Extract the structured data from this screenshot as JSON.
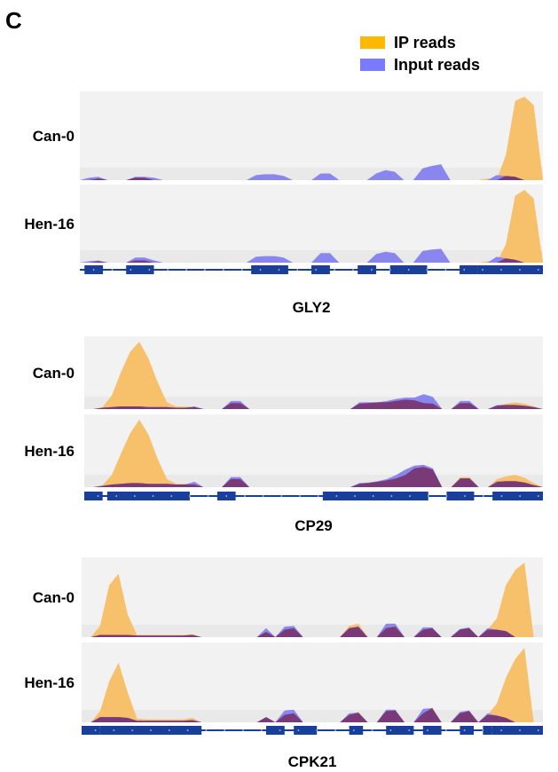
{
  "panel_label": "C",
  "legend": [
    {
      "label": "IP reads",
      "color": "#ffb800"
    },
    {
      "label": "Input reads",
      "color": "#7b7bff"
    }
  ],
  "colors": {
    "ip_fill": "#f7c06a",
    "input_fill": "#8a86ef",
    "overlap_fill": "#7a3a78",
    "track_bg": "#f2f2f2",
    "gene_model": "#1a3f9a"
  },
  "chart_data": [
    {
      "type": "area",
      "gene": "GLY2",
      "tracks": [
        "Can-0",
        "Hen-16"
      ],
      "x": [
        0.0,
        0.02,
        0.04,
        0.06,
        0.08,
        0.1,
        0.12,
        0.14,
        0.16,
        0.18,
        0.2,
        0.22,
        0.24,
        0.26,
        0.28,
        0.3,
        0.32,
        0.34,
        0.36,
        0.38,
        0.4,
        0.42,
        0.44,
        0.46,
        0.48,
        0.5,
        0.52,
        0.54,
        0.56,
        0.58,
        0.6,
        0.62,
        0.64,
        0.66,
        0.68,
        0.7,
        0.72,
        0.74,
        0.76,
        0.78,
        0.8,
        0.82,
        0.84,
        0.86,
        0.88,
        0.9,
        0.92,
        0.94,
        0.96,
        0.98,
        1.0
      ],
      "series": [
        {
          "name": "IP reads",
          "track": "Can-0",
          "values": [
            0,
            0,
            2,
            0,
            0,
            0,
            3,
            3,
            0,
            0,
            0,
            0,
            0,
            0,
            0,
            0,
            0,
            0,
            0,
            0,
            0,
            0,
            0,
            0,
            0,
            0,
            0,
            0,
            0,
            0,
            0,
            0,
            0,
            0,
            0,
            0,
            0,
            0,
            0,
            0,
            0,
            0,
            0,
            0,
            2,
            0,
            30,
            95,
            100,
            90,
            0
          ]
        },
        {
          "name": "Input reads",
          "track": "Can-0",
          "values": [
            0,
            3,
            4,
            0,
            0,
            0,
            4,
            4,
            3,
            0,
            0,
            0,
            0,
            0,
            0,
            0,
            0,
            0,
            0,
            6,
            7,
            7,
            5,
            0,
            0,
            0,
            8,
            8,
            0,
            0,
            0,
            0,
            8,
            12,
            10,
            0,
            0,
            14,
            17,
            19,
            0,
            0,
            0,
            0,
            0,
            6,
            5,
            4,
            0,
            0,
            0
          ]
        },
        {
          "name": "IP reads",
          "track": "Hen-16",
          "values": [
            0,
            0,
            2,
            0,
            0,
            0,
            3,
            3,
            0,
            0,
            0,
            0,
            0,
            0,
            0,
            0,
            0,
            0,
            0,
            0,
            0,
            0,
            0,
            0,
            0,
            0,
            0,
            0,
            0,
            0,
            0,
            0,
            0,
            0,
            0,
            0,
            0,
            0,
            0,
            0,
            0,
            0,
            0,
            0,
            2,
            0,
            25,
            92,
            100,
            88,
            0
          ]
        },
        {
          "name": "Input reads",
          "track": "Hen-16",
          "values": [
            0,
            2,
            3,
            0,
            0,
            0,
            7,
            7,
            3,
            0,
            0,
            0,
            0,
            0,
            0,
            0,
            0,
            0,
            0,
            8,
            9,
            9,
            7,
            0,
            0,
            0,
            13,
            13,
            0,
            0,
            0,
            0,
            12,
            15,
            13,
            0,
            0,
            16,
            18,
            19,
            0,
            0,
            0,
            0,
            0,
            8,
            6,
            4,
            0,
            0,
            0
          ]
        }
      ],
      "gene_model": {
        "blocks": [
          [
            0.01,
            0.05
          ],
          [
            0.1,
            0.16
          ],
          [
            0.37,
            0.45
          ],
          [
            0.5,
            0.54
          ],
          [
            0.6,
            0.64
          ],
          [
            0.67,
            0.75
          ],
          [
            0.82,
            0.86
          ],
          [
            0.86,
            1.0
          ]
        ],
        "intron_range": [
          0.0,
          1.0
        ]
      }
    },
    {
      "type": "area",
      "gene": "CP29",
      "tracks": [
        "Can-0",
        "Hen-16"
      ],
      "x": [
        0.0,
        0.02,
        0.04,
        0.06,
        0.08,
        0.1,
        0.12,
        0.14,
        0.16,
        0.18,
        0.2,
        0.22,
        0.24,
        0.26,
        0.28,
        0.3,
        0.32,
        0.34,
        0.36,
        0.38,
        0.4,
        0.42,
        0.44,
        0.46,
        0.48,
        0.5,
        0.52,
        0.54,
        0.56,
        0.58,
        0.6,
        0.62,
        0.64,
        0.66,
        0.68,
        0.7,
        0.72,
        0.74,
        0.76,
        0.78,
        0.8,
        0.82,
        0.84,
        0.86,
        0.88,
        0.9,
        0.92,
        0.94,
        0.96,
        0.98,
        1.0
      ],
      "series": [
        {
          "name": "IP reads",
          "track": "Can-0",
          "values": [
            0,
            0,
            3,
            20,
            55,
            85,
            100,
            75,
            40,
            10,
            4,
            4,
            3,
            0,
            0,
            0,
            9,
            9,
            0,
            0,
            0,
            0,
            0,
            0,
            0,
            0,
            0,
            0,
            0,
            0,
            8,
            9,
            10,
            10,
            12,
            14,
            13,
            9,
            8,
            0,
            0,
            9,
            9,
            0,
            0,
            5,
            8,
            10,
            8,
            4,
            0
          ]
        },
        {
          "name": "Input reads",
          "track": "Can-0",
          "values": [
            0,
            0,
            2,
            3,
            4,
            4,
            4,
            3,
            3,
            3,
            2,
            2,
            4,
            0,
            0,
            0,
            12,
            12,
            0,
            0,
            0,
            0,
            0,
            0,
            0,
            0,
            0,
            0,
            0,
            0,
            10,
            10,
            10,
            12,
            15,
            17,
            17,
            22,
            18,
            0,
            0,
            12,
            12,
            0,
            0,
            6,
            6,
            6,
            5,
            3,
            0
          ]
        },
        {
          "name": "IP reads",
          "track": "Hen-16",
          "values": [
            0,
            0,
            3,
            18,
            50,
            80,
            100,
            78,
            42,
            12,
            5,
            5,
            4,
            0,
            0,
            0,
            12,
            12,
            0,
            0,
            0,
            0,
            0,
            0,
            0,
            0,
            0,
            0,
            0,
            0,
            5,
            6,
            8,
            10,
            13,
            18,
            28,
            30,
            26,
            0,
            0,
            15,
            15,
            0,
            0,
            12,
            16,
            18,
            14,
            6,
            0
          ]
        },
        {
          "name": "Input reads",
          "track": "Hen-16",
          "values": [
            0,
            0,
            2,
            4,
            5,
            6,
            6,
            5,
            5,
            5,
            4,
            4,
            8,
            0,
            0,
            0,
            15,
            15,
            0,
            0,
            0,
            0,
            0,
            0,
            0,
            0,
            0,
            0,
            0,
            0,
            6,
            7,
            9,
            12,
            18,
            26,
            32,
            33,
            28,
            0,
            0,
            13,
            13,
            0,
            0,
            8,
            9,
            9,
            7,
            3,
            0
          ]
        }
      ],
      "gene_model": {
        "blocks": [
          [
            0.0,
            0.04
          ],
          [
            0.05,
            0.23
          ],
          [
            0.29,
            0.33
          ],
          [
            0.52,
            0.75
          ],
          [
            0.79,
            0.82
          ],
          [
            0.82,
            0.85
          ],
          [
            0.89,
            1.0
          ]
        ],
        "intron_range": [
          0.0,
          1.0
        ]
      }
    },
    {
      "type": "area",
      "gene": "CPK21",
      "tracks": [
        "Can-0",
        "Hen-16"
      ],
      "x": [
        0.0,
        0.02,
        0.04,
        0.06,
        0.08,
        0.1,
        0.12,
        0.14,
        0.16,
        0.18,
        0.2,
        0.22,
        0.24,
        0.26,
        0.28,
        0.3,
        0.32,
        0.34,
        0.36,
        0.38,
        0.4,
        0.42,
        0.44,
        0.46,
        0.48,
        0.5,
        0.52,
        0.54,
        0.56,
        0.58,
        0.6,
        0.62,
        0.64,
        0.66,
        0.68,
        0.7,
        0.72,
        0.74,
        0.76,
        0.78,
        0.8,
        0.82,
        0.84,
        0.86,
        0.88,
        0.9,
        0.92,
        0.94,
        0.96,
        0.98,
        1.0
      ],
      "series": [
        {
          "name": "IP reads",
          "track": "Can-0",
          "values": [
            0,
            0,
            15,
            70,
            85,
            30,
            3,
            3,
            3,
            3,
            3,
            3,
            4,
            0,
            0,
            0,
            0,
            0,
            0,
            0,
            7,
            0,
            10,
            12,
            0,
            0,
            0,
            0,
            0,
            15,
            18,
            0,
            0,
            12,
            14,
            0,
            0,
            10,
            12,
            0,
            0,
            10,
            12,
            0,
            10,
            25,
            70,
            90,
            100,
            0,
            0
          ]
        },
        {
          "name": "Input reads",
          "track": "Can-0",
          "values": [
            0,
            0,
            3,
            3,
            3,
            3,
            2,
            2,
            2,
            2,
            2,
            2,
            3,
            0,
            0,
            0,
            0,
            0,
            0,
            0,
            12,
            0,
            14,
            15,
            0,
            0,
            0,
            0,
            0,
            12,
            14,
            0,
            0,
            18,
            18,
            0,
            0,
            13,
            13,
            0,
            0,
            11,
            13,
            0,
            12,
            10,
            8,
            0,
            0,
            0,
            0
          ]
        },
        {
          "name": "IP reads",
          "track": "Hen-16",
          "values": [
            0,
            0,
            15,
            55,
            80,
            40,
            5,
            4,
            4,
            4,
            4,
            4,
            6,
            0,
            0,
            0,
            0,
            0,
            0,
            0,
            7,
            0,
            10,
            12,
            0,
            0,
            0,
            0,
            0,
            10,
            14,
            0,
            0,
            15,
            16,
            0,
            0,
            12,
            20,
            0,
            0,
            12,
            15,
            0,
            10,
            25,
            60,
            85,
            100,
            0,
            0
          ]
        },
        {
          "name": "Input reads",
          "track": "Hen-16",
          "values": [
            0,
            0,
            7,
            7,
            7,
            6,
            2,
            2,
            2,
            2,
            2,
            2,
            3,
            0,
            0,
            0,
            0,
            0,
            0,
            0,
            7,
            0,
            16,
            17,
            0,
            0,
            0,
            0,
            0,
            12,
            13,
            0,
            0,
            17,
            17,
            0,
            0,
            18,
            19,
            0,
            0,
            14,
            16,
            0,
            12,
            9,
            6,
            0,
            0,
            0,
            0
          ]
        }
      ],
      "gene_model": {
        "blocks": [
          [
            0.0,
            0.04
          ],
          [
            0.04,
            0.26
          ],
          [
            0.4,
            0.44
          ],
          [
            0.46,
            0.51
          ],
          [
            0.58,
            0.61
          ],
          [
            0.66,
            0.72
          ],
          [
            0.74,
            0.78
          ],
          [
            0.82,
            0.85
          ],
          [
            0.87,
            0.89
          ],
          [
            0.89,
            1.0
          ]
        ],
        "intron_range": [
          0.0,
          1.0
        ]
      }
    }
  ]
}
